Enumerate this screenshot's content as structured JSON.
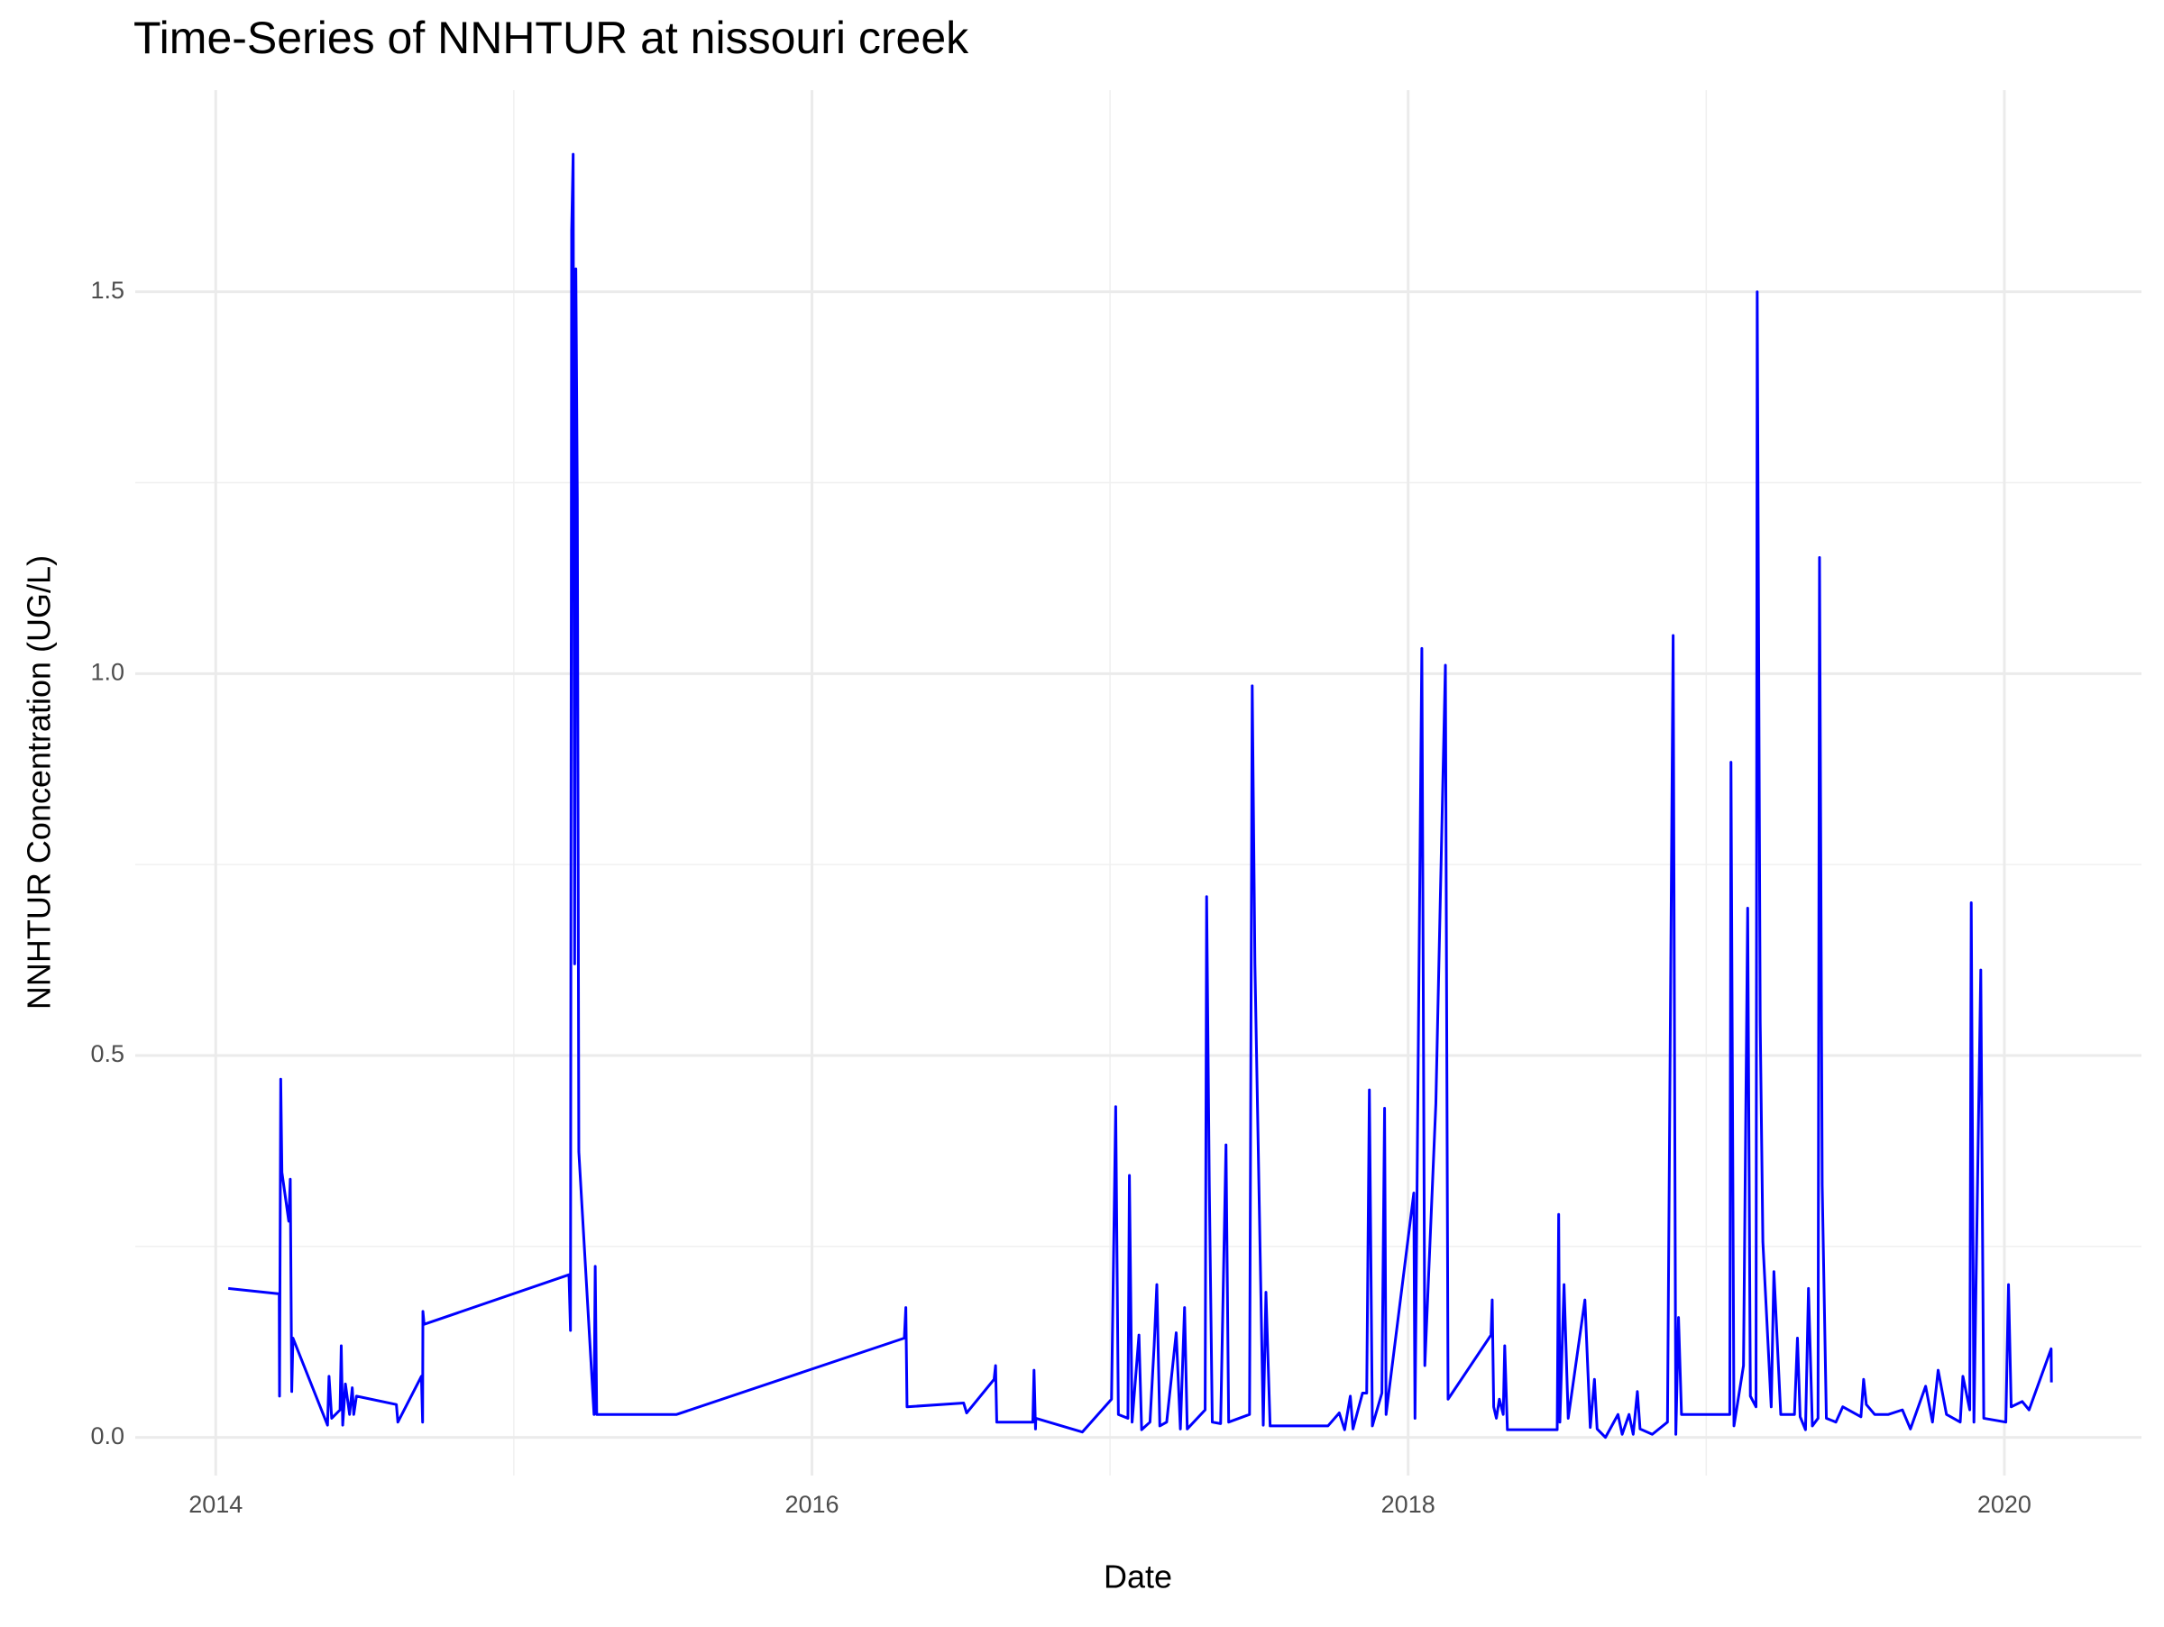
{
  "chart_data": {
    "type": "line",
    "title": "Time-Series of NNHTUR at nissouri creek",
    "x_label": "Date",
    "y_label": "NNHTUR Concentration (UG/L)",
    "xlim": [
      2013.73,
      2020.46
    ],
    "ylim": [
      -0.05,
      1.764
    ],
    "xticks": [
      2014,
      2016,
      2018,
      2020
    ],
    "yticks": [
      {
        "value": 0,
        "label": "0.0"
      },
      0.5,
      {
        "value": 1,
        "label": "1.0"
      },
      1.5
    ],
    "xminor": [
      2015,
      2017,
      2019
    ],
    "yminor": [
      0.25,
      0.75,
      1.25
    ],
    "grid": true,
    "series": [
      {
        "name": "NNHTUR",
        "color": "#0000ff",
        "x": [
          2014.042,
          2014.213,
          2014.214,
          2014.218,
          2014.222,
          2014.245,
          2014.25,
          2014.255,
          2014.259,
          2014.375,
          2014.38,
          2014.389,
          2014.417,
          2014.421,
          2014.426,
          2014.435,
          2014.449,
          2014.458,
          2014.463,
          2014.472,
          2014.606,
          2014.611,
          2014.69,
          2014.694,
          2014.695,
          2014.699,
          2015.185,
          2015.19,
          2015.194,
          2015.199,
          2015.204,
          2015.208,
          2015.213,
          2015.218,
          2015.269,
          2015.273,
          2015.278,
          2015.546,
          2016.31,
          2016.315,
          2016.319,
          2016.509,
          2016.519,
          2016.611,
          2016.616,
          2016.62,
          2016.741,
          2016.745,
          2016.75,
          2016.751,
          2016.907,
          2017.005,
          2017.019,
          2017.028,
          2017.06,
          2017.065,
          2017.074,
          2017.097,
          2017.106,
          2017.134,
          2017.148,
          2017.157,
          2017.167,
          2017.19,
          2017.222,
          2017.236,
          2017.25,
          2017.259,
          2017.319,
          2017.324,
          2017.333,
          2017.343,
          2017.371,
          2017.389,
          2017.398,
          2017.468,
          2017.477,
          2017.486,
          2017.514,
          2017.523,
          2017.537,
          2017.731,
          2017.769,
          2017.787,
          2017.806,
          2017.815,
          2017.847,
          2017.861,
          2017.87,
          2017.88,
          2017.912,
          2017.921,
          2017.926,
          2018.019,
          2018.023,
          2018.046,
          2018.056,
          2018.093,
          2018.125,
          2018.134,
          2018.278,
          2018.282,
          2018.287,
          2018.296,
          2018.306,
          2018.319,
          2018.324,
          2018.333,
          2018.5,
          2018.505,
          2018.509,
          2018.523,
          2018.537,
          2018.593,
          2018.611,
          2018.625,
          2018.634,
          2018.662,
          2018.704,
          2018.718,
          2018.741,
          2018.755,
          2018.769,
          2018.778,
          2018.819,
          2018.87,
          2018.889,
          2018.898,
          2018.907,
          2018.917,
          2019.079,
          2019.083,
          2019.093,
          2019.125,
          2019.139,
          2019.148,
          2019.167,
          2019.171,
          2019.181,
          2019.19,
          2019.218,
          2019.227,
          2019.25,
          2019.296,
          2019.306,
          2019.315,
          2019.333,
          2019.343,
          2019.356,
          2019.375,
          2019.38,
          2019.389,
          2019.403,
          2019.435,
          2019.458,
          2019.519,
          2019.528,
          2019.537,
          2019.565,
          2019.611,
          2019.658,
          2019.685,
          2019.736,
          2019.759,
          2019.778,
          2019.806,
          2019.852,
          2019.861,
          2019.884,
          2019.889,
          2019.898,
          2019.921,
          2019.931,
          2020.005,
          2020.014,
          2020.023,
          2020.06,
          2020.083,
          2020.157,
          2020.158
        ],
        "values": [
          0.195,
          0.188,
          0.054,
          0.469,
          0.347,
          0.283,
          0.338,
          0.06,
          0.13,
          0.016,
          0.08,
          0.025,
          0.036,
          0.12,
          0.016,
          0.07,
          0.03,
          0.065,
          0.03,
          0.054,
          0.043,
          0.02,
          0.08,
          0.02,
          0.165,
          0.148,
          0.213,
          0.14,
          1.58,
          1.68,
          0.62,
          1.53,
          1.23,
          0.374,
          0.03,
          0.224,
          0.03,
          0.03,
          0.13,
          0.17,
          0.04,
          0.045,
          0.032,
          0.076,
          0.094,
          0.02,
          0.02,
          0.088,
          0.011,
          0.025,
          0.007,
          0.05,
          0.433,
          0.03,
          0.025,
          0.343,
          0.02,
          0.134,
          0.01,
          0.02,
          0.12,
          0.2,
          0.015,
          0.02,
          0.137,
          0.011,
          0.17,
          0.011,
          0.036,
          0.708,
          0.33,
          0.02,
          0.018,
          0.383,
          0.02,
          0.03,
          0.984,
          0.62,
          0.016,
          0.19,
          0.015,
          0.015,
          0.032,
          0.01,
          0.054,
          0.011,
          0.058,
          0.058,
          0.455,
          0.015,
          0.058,
          0.431,
          0.03,
          0.32,
          0.025,
          1.033,
          0.094,
          0.437,
          1.011,
          0.05,
          0.134,
          0.18,
          0.04,
          0.025,
          0.05,
          0.03,
          0.12,
          0.01,
          0.01,
          0.292,
          0.02,
          0.2,
          0.025,
          0.18,
          0.013,
          0.076,
          0.011,
          0.0,
          0.03,
          0.004,
          0.03,
          0.004,
          0.06,
          0.011,
          0.004,
          0.02,
          1.05,
          0.004,
          0.157,
          0.03,
          0.03,
          0.884,
          0.015,
          0.094,
          0.693,
          0.054,
          0.04,
          1.5,
          0.545,
          0.256,
          0.04,
          0.217,
          0.03,
          0.03,
          0.13,
          0.027,
          0.01,
          0.195,
          0.015,
          0.025,
          1.152,
          0.33,
          0.025,
          0.02,
          0.04,
          0.027,
          0.076,
          0.043,
          0.03,
          0.03,
          0.036,
          0.011,
          0.067,
          0.02,
          0.088,
          0.03,
          0.02,
          0.08,
          0.036,
          0.7,
          0.02,
          0.612,
          0.025,
          0.02,
          0.2,
          0.04,
          0.047,
          0.036,
          0.116,
          0.072
        ]
      }
    ]
  }
}
